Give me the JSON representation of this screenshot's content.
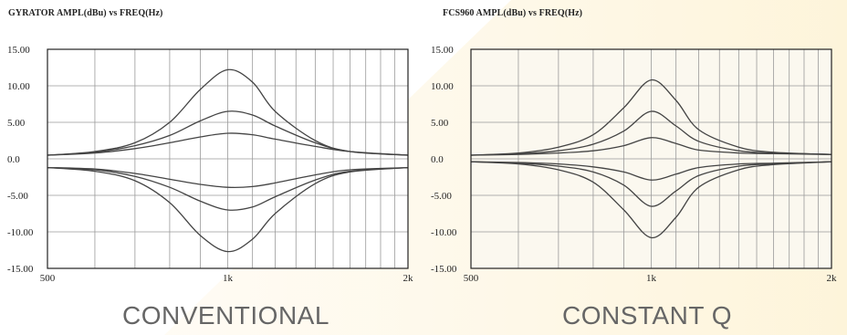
{
  "chart_data": [
    {
      "type": "line",
      "title": "GYRATOR AMPL(dBu) vs FREQ(Hz)",
      "caption": "CONVENTIONAL",
      "xscale": "log",
      "xlim": [
        500,
        2000
      ],
      "ylim": [
        -15,
        15
      ],
      "x_tick_labels": [
        "500",
        "1k",
        "2k"
      ],
      "y_tick_labels": [
        "15.00",
        "10.00",
        "5.00",
        "0.0",
        "-5.00",
        "-10.00",
        "-15.00"
      ],
      "grid": true,
      "plot_background": "#ffffff",
      "series": [
        {
          "x": [
            500,
            600,
            700,
            800,
            900,
            1000,
            1100,
            1200,
            1400,
            1600,
            2000
          ],
          "values": [
            0.5,
            1.0,
            2.2,
            5.0,
            9.5,
            12.2,
            10.5,
            6.5,
            2.5,
            1.0,
            0.5
          ]
        },
        {
          "x": [
            500,
            600,
            700,
            800,
            900,
            1000,
            1100,
            1200,
            1400,
            1600,
            2000
          ],
          "values": [
            0.5,
            0.9,
            1.8,
            3.2,
            5.2,
            6.5,
            6.0,
            4.5,
            2.2,
            1.0,
            0.5
          ]
        },
        {
          "x": [
            500,
            600,
            700,
            800,
            900,
            1000,
            1100,
            1200,
            1400,
            1600,
            2000
          ],
          "values": [
            0.5,
            0.8,
            1.4,
            2.2,
            3.0,
            3.5,
            3.3,
            2.7,
            1.7,
            1.0,
            0.5
          ]
        },
        {
          "x": [
            500,
            600,
            700,
            800,
            900,
            1000,
            1100,
            1200,
            1400,
            1600,
            2000
          ],
          "values": [
            -1.2,
            -1.4,
            -2.0,
            -2.8,
            -3.5,
            -3.9,
            -3.8,
            -3.3,
            -2.2,
            -1.5,
            -1.2
          ]
        },
        {
          "x": [
            500,
            600,
            700,
            800,
            900,
            1000,
            1100,
            1200,
            1400,
            1600,
            2000
          ],
          "values": [
            -1.2,
            -1.5,
            -2.4,
            -3.9,
            -5.8,
            -7.0,
            -6.6,
            -5.2,
            -2.9,
            -1.7,
            -1.2
          ]
        },
        {
          "x": [
            500,
            600,
            700,
            800,
            900,
            1000,
            1100,
            1200,
            1400,
            1600,
            2000
          ],
          "values": [
            -1.2,
            -1.7,
            -3.0,
            -6.0,
            -10.5,
            -12.7,
            -11.0,
            -7.5,
            -3.4,
            -1.8,
            -1.2
          ]
        }
      ]
    },
    {
      "type": "line",
      "title": "FCS960 AMPL(dBu) vs FREQ(Hz)",
      "caption": "CONSTANT Q",
      "xscale": "log",
      "xlim": [
        500,
        2000
      ],
      "ylim": [
        -15,
        15
      ],
      "x_tick_labels": [
        "500",
        "1k",
        "2k"
      ],
      "y_tick_labels": [
        "15.00",
        "10.00",
        "5.00",
        "0.0",
        "-5.00",
        "-10.00",
        "-15.00"
      ],
      "grid": true,
      "plot_background": "#fbf8ef",
      "series": [
        {
          "x": [
            500,
            600,
            700,
            800,
            900,
            1000,
            1100,
            1200,
            1400,
            1600,
            2000
          ],
          "values": [
            0.5,
            0.8,
            1.6,
            3.3,
            7.0,
            10.8,
            8.0,
            4.0,
            1.6,
            0.9,
            0.6
          ]
        },
        {
          "x": [
            500,
            600,
            700,
            800,
            900,
            1000,
            1100,
            1200,
            1400,
            1600,
            2000
          ],
          "values": [
            0.5,
            0.7,
            1.1,
            2.0,
            3.8,
            6.5,
            4.5,
            2.4,
            1.1,
            0.8,
            0.6
          ]
        },
        {
          "x": [
            500,
            600,
            700,
            800,
            900,
            1000,
            1100,
            1200,
            1400,
            1600,
            2000
          ],
          "values": [
            0.5,
            0.6,
            0.8,
            1.1,
            1.8,
            2.9,
            2.1,
            1.2,
            0.8,
            0.7,
            0.6
          ]
        },
        {
          "x": [
            500,
            600,
            700,
            800,
            900,
            1000,
            1100,
            1200,
            1400,
            1600,
            2000
          ],
          "values": [
            -0.4,
            -0.5,
            -0.7,
            -1.1,
            -1.8,
            -2.9,
            -2.1,
            -1.2,
            -0.7,
            -0.6,
            -0.4
          ]
        },
        {
          "x": [
            500,
            600,
            700,
            800,
            900,
            1000,
            1100,
            1200,
            1400,
            1600,
            2000
          ],
          "values": [
            -0.4,
            -0.6,
            -1.0,
            -1.8,
            -3.6,
            -6.5,
            -4.4,
            -2.3,
            -1.0,
            -0.7,
            -0.4
          ]
        },
        {
          "x": [
            500,
            600,
            700,
            800,
            900,
            1000,
            1100,
            1200,
            1400,
            1600,
            2000
          ],
          "values": [
            -0.4,
            -0.7,
            -1.5,
            -3.2,
            -7.0,
            -10.8,
            -8.0,
            -3.9,
            -1.5,
            -0.8,
            -0.4
          ]
        }
      ]
    }
  ],
  "colors": {
    "curve": "#444444",
    "grid": "#9a9a9a",
    "frame": "#222222",
    "caption": "#666666",
    "glow": "#fdf3d6"
  }
}
